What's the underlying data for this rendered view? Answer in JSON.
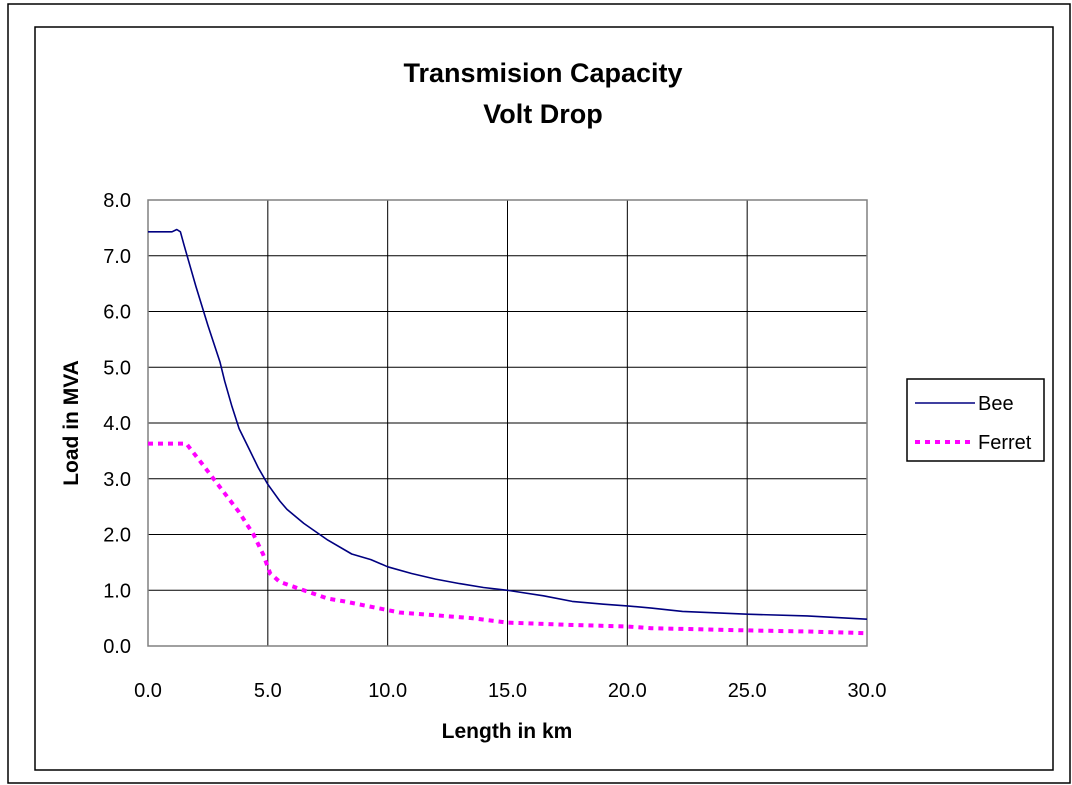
{
  "chart_data": {
    "type": "line",
    "title_lines": [
      "Transmision Capacity",
      "Volt Drop"
    ],
    "xlabel": "Length in km",
    "ylabel": "Load in MVA",
    "xlim": [
      0,
      30
    ],
    "ylim": [
      0,
      8
    ],
    "x_ticks": [
      "0.0",
      "5.0",
      "10.0",
      "15.0",
      "20.0",
      "25.0",
      "30.0"
    ],
    "y_ticks": [
      "0.0",
      "1.0",
      "2.0",
      "3.0",
      "4.0",
      "5.0",
      "6.0",
      "7.0",
      "8.0"
    ],
    "grid": true,
    "legend_position": "right",
    "series": [
      {
        "name": "Bee",
        "color": "#000080",
        "style": "solid",
        "points": [
          [
            0,
            7.43
          ],
          [
            1.0,
            7.43
          ],
          [
            1.2,
            7.47
          ],
          [
            1.35,
            7.43
          ],
          [
            1.5,
            7.2
          ],
          [
            1.7,
            6.9
          ],
          [
            2.0,
            6.45
          ],
          [
            2.5,
            5.75
          ],
          [
            3.0,
            5.1
          ],
          [
            3.2,
            4.75
          ],
          [
            3.5,
            4.3
          ],
          [
            3.8,
            3.9
          ],
          [
            4.2,
            3.55
          ],
          [
            4.6,
            3.2
          ],
          [
            5.0,
            2.9
          ],
          [
            5.5,
            2.6
          ],
          [
            5.8,
            2.45
          ],
          [
            6.5,
            2.2
          ],
          [
            7.5,
            1.9
          ],
          [
            8.5,
            1.65
          ],
          [
            9.3,
            1.55
          ],
          [
            10.0,
            1.42
          ],
          [
            11.0,
            1.3
          ],
          [
            12.0,
            1.2
          ],
          [
            13.0,
            1.12
          ],
          [
            14.0,
            1.05
          ],
          [
            15.0,
            1.0
          ],
          [
            16.5,
            0.9
          ],
          [
            17.7,
            0.8
          ],
          [
            19.0,
            0.75
          ],
          [
            20.0,
            0.72
          ],
          [
            21.0,
            0.68
          ],
          [
            22.3,
            0.62
          ],
          [
            25.0,
            0.57
          ],
          [
            27.5,
            0.54
          ],
          [
            30.0,
            0.48
          ]
        ]
      },
      {
        "name": "Ferret",
        "color": "#ff00ff",
        "style": "dotted",
        "points": [
          [
            0,
            3.63
          ],
          [
            1.0,
            3.63
          ],
          [
            1.6,
            3.63
          ],
          [
            2.2,
            3.3
          ],
          [
            3.0,
            2.85
          ],
          [
            3.8,
            2.4
          ],
          [
            4.4,
            2.0
          ],
          [
            4.8,
            1.65
          ],
          [
            5.1,
            1.3
          ],
          [
            5.5,
            1.15
          ],
          [
            6.5,
            1.0
          ],
          [
            7.5,
            0.85
          ],
          [
            8.2,
            0.8
          ],
          [
            9.0,
            0.73
          ],
          [
            10.5,
            0.6
          ],
          [
            12.0,
            0.55
          ],
          [
            13.5,
            0.5
          ],
          [
            15.0,
            0.42
          ],
          [
            17.5,
            0.38
          ],
          [
            20.0,
            0.35
          ],
          [
            21.0,
            0.32
          ],
          [
            23.0,
            0.3
          ],
          [
            25.0,
            0.28
          ],
          [
            27.5,
            0.26
          ],
          [
            30.0,
            0.23
          ]
        ]
      }
    ]
  }
}
